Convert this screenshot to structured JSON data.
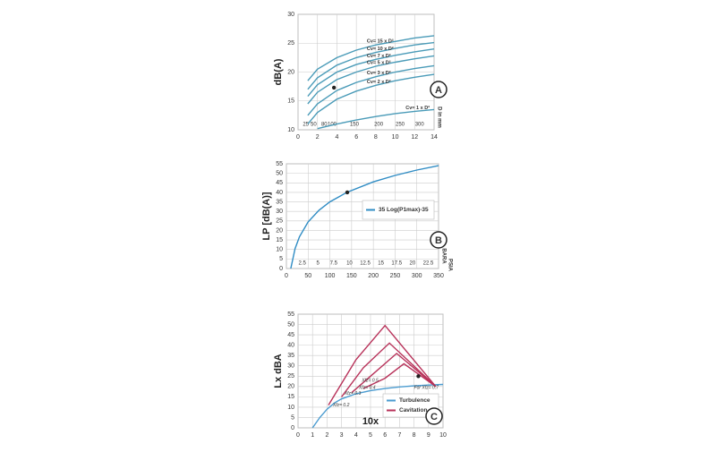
{
  "chart_data": [
    {
      "type": "line",
      "badge": "A",
      "ylabel": "dB(A)",
      "x2label": "D in mm",
      "xlim": [
        0,
        14
      ],
      "xticks": [
        0,
        2,
        4,
        6,
        8,
        10,
        12,
        14
      ],
      "ylim": [
        10,
        30
      ],
      "yticks": [
        10,
        15,
        20,
        25,
        30
      ],
      "grid": true,
      "x2ticks": [
        {
          "value": 0.8,
          "label": "25"
        },
        {
          "value": 1.6,
          "label": "50"
        },
        {
          "value": 2.7,
          "label": "80"
        },
        {
          "value": 3.5,
          "label": "100"
        },
        {
          "value": 5.8,
          "label": "150"
        },
        {
          "value": 8.3,
          "label": "200"
        },
        {
          "value": 10.5,
          "label": "250"
        },
        {
          "value": 12.5,
          "label": "300"
        }
      ],
      "x": [
        1,
        2,
        4,
        6,
        8,
        10,
        12,
        14
      ],
      "series": [
        {
          "name": "Cv= 15 x D²",
          "color": "#4a9bb8",
          "values": [
            18.5,
            20.5,
            22.5,
            23.8,
            24.7,
            25.3,
            25.9,
            26.3
          ]
        },
        {
          "name": "Cv= 10 x D²",
          "color": "#4a9bb8",
          "values": [
            17,
            19,
            21.2,
            22.5,
            23.4,
            24.1,
            24.7,
            25.1
          ]
        },
        {
          "name": "Cv= 7 x D²",
          "color": "#4a9bb8",
          "values": [
            15.8,
            17.8,
            20,
            21.3,
            22.2,
            22.9,
            23.5,
            24
          ]
        },
        {
          "name": "Cv= 5 x D²",
          "color": "#4a9bb8",
          "values": [
            14.5,
            16.5,
            18.7,
            20,
            21,
            21.7,
            22.3,
            22.8
          ]
        },
        {
          "name": "Cv= 3 x D²",
          "color": "#4a9bb8",
          "values": [
            12.5,
            14.5,
            16.8,
            18.2,
            19.2,
            20,
            20.6,
            21.1
          ]
        },
        {
          "name": "Cv= 2 x D²",
          "color": "#4a9bb8",
          "values": [
            11,
            13,
            15.3,
            16.7,
            17.7,
            18.5,
            19.1,
            19.6
          ]
        },
        {
          "name": "Cv= 1 x D²",
          "color": "#4a9bb8",
          "values": [
            null,
            10.2,
            11,
            11.7,
            12.3,
            12.8,
            13.2,
            13.5
          ]
        }
      ],
      "markers": [
        {
          "x": 3.7,
          "y": 17.3
        }
      ]
    },
    {
      "type": "line",
      "badge": "B",
      "ylabel": "LP [dB(A)]",
      "x2label": "BARA",
      "xunit": "PSIA",
      "xlim": [
        0,
        350
      ],
      "xticks": [
        0,
        50,
        100,
        150,
        200,
        250,
        300,
        350
      ],
      "ylim": [
        0,
        55
      ],
      "yticks": [
        0,
        5,
        10,
        15,
        20,
        25,
        30,
        35,
        40,
        45,
        50,
        55
      ],
      "grid": true,
      "x2ticks": [
        {
          "value": 36.3,
          "label": "2.5"
        },
        {
          "value": 72.5,
          "label": "5"
        },
        {
          "value": 108.8,
          "label": "7.5"
        },
        {
          "value": 145,
          "label": "10"
        },
        {
          "value": 181.3,
          "label": "12.5"
        },
        {
          "value": 217.5,
          "label": "15"
        },
        {
          "value": 253.8,
          "label": "17.5"
        },
        {
          "value": 290,
          "label": "20"
        },
        {
          "value": 326.3,
          "label": "22.5"
        }
      ],
      "x": [
        10,
        20,
        30,
        50,
        75,
        100,
        140,
        200,
        250,
        300,
        350
      ],
      "series": [
        {
          "name": "35 Log(P1max)-35",
          "color": "#2f8cc4",
          "values": [
            0,
            10.5,
            16.7,
            24.5,
            30.6,
            35,
            40.1,
            45.5,
            48.9,
            51.7,
            54
          ]
        }
      ],
      "markers": [
        {
          "x": 140,
          "y": 40
        }
      ]
    },
    {
      "type": "line",
      "badge": "C",
      "ylabel": "Lx dBA",
      "xlabel": "10x",
      "xlim": [
        0,
        10
      ],
      "xticks": [
        0,
        1,
        2,
        3,
        4,
        5,
        6,
        7,
        8,
        9,
        10
      ],
      "ylim": [
        0,
        55
      ],
      "yticks": [
        0,
        5,
        10,
        15,
        20,
        25,
        30,
        35,
        40,
        45,
        50,
        55
      ],
      "grid": true,
      "series": [
        {
          "name": "Turbulence",
          "color": "#4a9bd0",
          "x": [
            1,
            1.5,
            2,
            2.5,
            3,
            4,
            5,
            6,
            7,
            8,
            9,
            10
          ],
          "values": [
            0,
            5,
            9,
            12,
            14,
            16.5,
            18,
            19,
            19.8,
            20.3,
            20.7,
            21
          ]
        },
        {
          "name": "Cavitation",
          "color": "#b8325a",
          "x": [
            2.1,
            4,
            6,
            9.5
          ],
          "values": [
            11,
            33,
            49.5,
            20
          ]
        },
        {
          "color": "#b8325a",
          "x": [
            3,
            4.5,
            6.3,
            9.5
          ],
          "values": [
            15,
            29,
            41,
            20
          ]
        },
        {
          "color": "#b8325a",
          "x": [
            3.7,
            5,
            6.8,
            9.5
          ],
          "values": [
            17,
            25,
            36,
            20
          ]
        },
        {
          "color": "#b8325a",
          "x": [
            4.5,
            6,
            7.3,
            9.5
          ],
          "values": [
            19,
            24,
            31,
            20
          ]
        }
      ],
      "annotations": [
        "Xfz= 0.2",
        "Xfz= 0.3",
        "Xfz= 0.4",
        "Xfz= 0.5",
        "For Xfz= 0.7"
      ],
      "markers": [
        {
          "x": 8.3,
          "y": 25
        }
      ]
    }
  ]
}
